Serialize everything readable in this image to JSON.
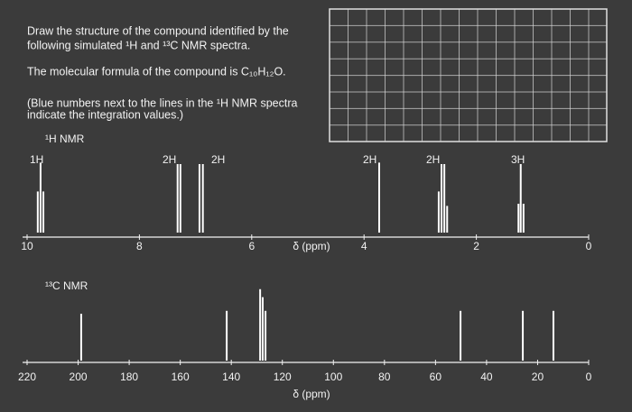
{
  "question": {
    "lines": [
      "Draw the structure of the compound identified by the",
      "following simulated ¹H and ¹³C NMR spectra.",
      "The molecular formula of the compound is C₁₀H₁₂O.",
      "(Blue numbers next to the lines in the ¹H NMR spectra",
      "indicate the integration values.)"
    ]
  },
  "chart_data": [
    {
      "type": "stick",
      "title": "¹H NMR",
      "xlabel": "δ (ppm)",
      "x": [
        9.81,
        9.76,
        9.71,
        7.32,
        7.27,
        6.93,
        6.87,
        3.73,
        2.67,
        2.62,
        2.57,
        2.52,
        1.25,
        1.21,
        1.16
      ],
      "values": [
        57,
        97,
        57,
        95,
        95,
        95,
        95,
        97,
        57,
        95,
        95,
        37,
        40,
        95,
        40
      ],
      "xlim": [
        10,
        0
      ],
      "ylim": [
        0,
        100
      ],
      "xticks": [
        10,
        8,
        6,
        4,
        2,
        0
      ],
      "color": "#ffffff",
      "annotations": [
        "1H",
        "2H",
        "2H",
        "2H",
        "2H",
        "3H"
      ]
    },
    {
      "type": "stick",
      "title": "¹³C NMR",
      "xlabel": "δ (ppm)",
      "x": [
        198.8,
        141.8,
        128.7,
        127.7,
        126.6,
        50.2,
        25.8,
        13.8
      ],
      "values": [
        65,
        69,
        99,
        88,
        69,
        69,
        69,
        69
      ],
      "xlim": [
        220,
        0
      ],
      "ylim": [
        0,
        100
      ],
      "xticks": [
        220,
        200,
        180,
        160,
        140,
        120,
        100,
        80,
        60,
        40,
        20,
        0
      ],
      "color": "#ffffff"
    }
  ]
}
